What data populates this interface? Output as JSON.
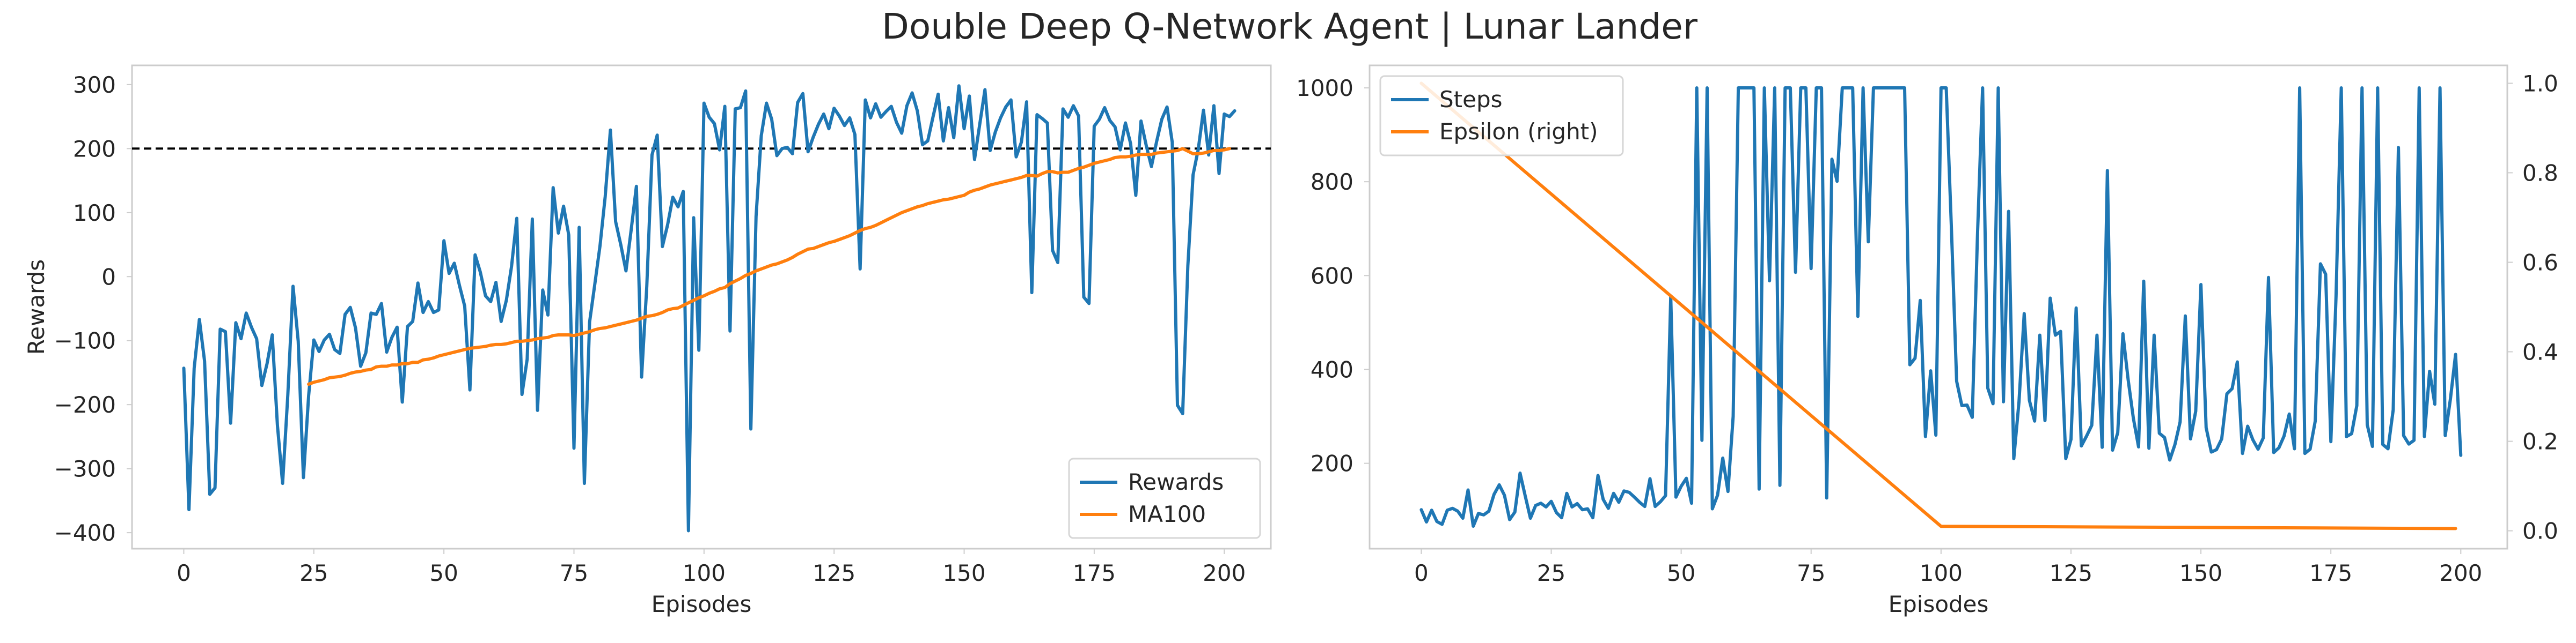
{
  "figure": {
    "title": "Double Deep Q-Network Agent | Lunar Lander"
  },
  "colors": {
    "blue": "#1f77b4",
    "orange": "#ff7f0e",
    "threshold": "#000000",
    "spine": "#cccccc"
  },
  "chart_data": [
    {
      "type": "line",
      "xlabel": "Episodes",
      "ylabel": "Rewards",
      "xlim": [
        -9.95,
        208.95
      ],
      "ylim": [
        -425,
        330
      ],
      "xticks": [
        0,
        25,
        50,
        75,
        100,
        125,
        150,
        175,
        200
      ],
      "yticks": [
        -400,
        -300,
        -200,
        -100,
        0,
        100,
        200,
        300
      ],
      "grid": false,
      "legend_position": "lower-right",
      "hline": {
        "y": 200,
        "style": "dashed"
      },
      "series": [
        {
          "name": "Rewards",
          "x_start": 0,
          "values": [
            -143,
            -364,
            -143,
            -67,
            -132,
            -340,
            -330,
            -82,
            -86,
            -229,
            -72,
            -97,
            -57,
            -79,
            -97,
            -170,
            -136,
            -91,
            -232,
            -323,
            -185,
            -15,
            -101,
            -314,
            -186,
            -99,
            -117,
            -99,
            -90,
            -114,
            -120,
            -59,
            -48,
            -80,
            -140,
            -119,
            -57,
            -59,
            -42,
            -118,
            -95,
            -79,
            -196,
            -78,
            -70,
            -10,
            -56,
            -39,
            -56,
            -52,
            56,
            5,
            21,
            -14,
            -46,
            -177,
            34,
            7,
            -30,
            -39,
            -9,
            -70,
            -37,
            16,
            91,
            -184,
            -129,
            90,
            -209,
            -21,
            -60,
            139,
            68,
            110,
            65,
            -268,
            77,
            -323,
            -71,
            -12,
            48,
            125,
            229,
            86,
            50,
            9,
            73,
            141,
            -157,
            -15,
            190,
            221,
            47,
            81,
            124,
            109,
            133,
            -397,
            92,
            -115,
            271,
            249,
            239,
            198,
            266,
            -85,
            262,
            264,
            290,
            -238,
            94,
            220,
            271,
            246,
            189,
            200,
            202,
            192,
            272,
            286,
            195,
            218,
            238,
            254,
            231,
            263,
            251,
            236,
            248,
            222,
            12,
            276,
            248,
            270,
            249,
            258,
            266,
            241,
            224,
            267,
            287,
            259,
            206,
            212,
            249,
            285,
            212,
            264,
            217,
            298,
            231,
            282,
            183,
            238,
            292,
            197,
            226,
            248,
            265,
            276,
            187,
            210,
            273,
            -25,
            253,
            247,
            240,
            41,
            22,
            262,
            249,
            267,
            251,
            -32,
            -42,
            235,
            246,
            264,
            244,
            234,
            198,
            240,
            208,
            127,
            243,
            205,
            172,
            211,
            246,
            265,
            210,
            -201,
            -214,
            17,
            159,
            199,
            260,
            190,
            267,
            161,
            254,
            250,
            259
          ]
        },
        {
          "name": "MA100",
          "x_start": 24,
          "values": [
            -168,
            -165,
            -163,
            -161,
            -158,
            -157,
            -156,
            -154,
            -151,
            -149,
            -148,
            -146,
            -145,
            -141,
            -140,
            -140,
            -138,
            -138,
            -136,
            -136,
            -134,
            -134,
            -130,
            -129,
            -127,
            -124,
            -122,
            -120,
            -118,
            -116,
            -114,
            -112,
            -111,
            -110,
            -109,
            -107,
            -106,
            -106,
            -105,
            -103,
            -101,
            -101,
            -100,
            -99,
            -97,
            -96,
            -95,
            -92,
            -91,
            -91,
            -91,
            -92,
            -90,
            -88,
            -86,
            -83,
            -81,
            -80,
            -78,
            -76,
            -74,
            -72,
            -70,
            -68,
            -65,
            -62,
            -61,
            -59,
            -56,
            -52,
            -50,
            -49,
            -45,
            -41,
            -37,
            -33,
            -30,
            -26,
            -23,
            -19,
            -17,
            -11,
            -7,
            -3,
            2,
            5,
            9,
            12,
            15,
            18,
            20,
            23,
            26,
            30,
            35,
            39,
            43,
            44,
            47,
            50,
            53,
            55,
            58,
            61,
            64,
            68,
            72,
            75,
            77,
            80,
            84,
            88,
            92,
            96,
            100,
            103,
            106,
            109,
            111,
            114,
            116,
            118,
            120,
            121,
            123,
            125,
            127,
            132,
            135,
            137,
            140,
            143,
            145,
            147,
            149,
            151,
            153,
            155,
            158,
            158,
            157,
            161,
            164,
            164,
            162,
            163,
            163,
            166,
            169,
            171,
            174,
            177,
            179,
            181,
            183,
            186,
            187,
            187,
            188,
            190,
            191,
            191,
            191,
            193,
            194,
            195,
            196,
            197,
            200,
            196,
            192,
            192,
            193,
            195,
            197,
            197,
            198,
            200
          ]
        }
      ]
    },
    {
      "type": "line",
      "xlabel": "Episodes",
      "ylabel": "",
      "xlim": [
        -9.95,
        208.95
      ],
      "ylim": [
        18,
        1048
      ],
      "right_ylim": [
        -0.04,
        1.04
      ],
      "xticks": [
        0,
        25,
        50,
        75,
        100,
        125,
        150,
        175,
        200
      ],
      "yticks": [
        200,
        400,
        600,
        800,
        1000
      ],
      "right_yticks": [
        "0.0",
        "0.2",
        "0.4",
        "0.6",
        "0.8",
        "1.0"
      ],
      "grid": false,
      "legend_position": "upper-left",
      "series": [
        {
          "name": "Steps",
          "x_start": 0,
          "axis": "left",
          "values": [
            101,
            75,
            100,
            76,
            70,
            100,
            104,
            98,
            83,
            143,
            66,
            93,
            90,
            98,
            134,
            154,
            132,
            80,
            96,
            179,
            130,
            83,
            110,
            115,
            107,
            119,
            95,
            84,
            136,
            107,
            114,
            101,
            103,
            84,
            174,
            123,
            104,
            136,
            117,
            141,
            138,
            128,
            117,
            108,
            167,
            108,
            118,
            131,
            555,
            128,
            151,
            168,
            115,
            1000,
            249,
            1000,
            103,
            132,
            211,
            140,
            300,
            1000,
            1000,
            1000,
            1000,
            145,
            1000,
            589,
            1000,
            153,
            1000,
            1000,
            607,
            1000,
            1000,
            615,
            1000,
            1000,
            126,
            848,
            801,
            1000,
            1000,
            1000,
            513,
            1000,
            672,
            1000,
            1000,
            1000,
            1000,
            1000,
            1000,
            1000,
            410,
            424,
            547,
            257,
            397,
            260,
            1000,
            1000,
            700,
            375,
            323,
            324,
            298,
            681,
            1000,
            360,
            327,
            1000,
            331,
            737,
            210,
            331,
            519,
            334,
            290,
            473,
            291,
            552,
            473,
            481,
            210,
            251,
            531,
            237,
            258,
            281,
            473,
            234,
            824,
            228,
            265,
            476,
            378,
            296,
            235,
            588,
            232,
            473,
            264,
            255,
            207,
            240,
            288,
            514,
            252,
            311,
            581,
            276,
            224,
            229,
            252,
            348,
            359,
            416,
            221,
            279,
            250,
            230,
            254,
            596,
            223,
            233,
            258,
            305,
            231,
            1000,
            221,
            230,
            290,
            625,
            603,
            246,
            557,
            1000,
            257,
            263,
            323,
            1000,
            282,
            236,
            1000,
            240,
            231,
            314,
            873,
            259,
            241,
            249,
            1000,
            257,
            396,
            326,
            1000,
            259,
            337,
            432,
            217
          ]
        },
        {
          "name": "Epsilon (right)",
          "x_start": 0,
          "axis": "right",
          "x": [
            0,
            100,
            199
          ],
          "values": [
            1.0,
            0.01,
            0.005
          ]
        }
      ]
    }
  ]
}
